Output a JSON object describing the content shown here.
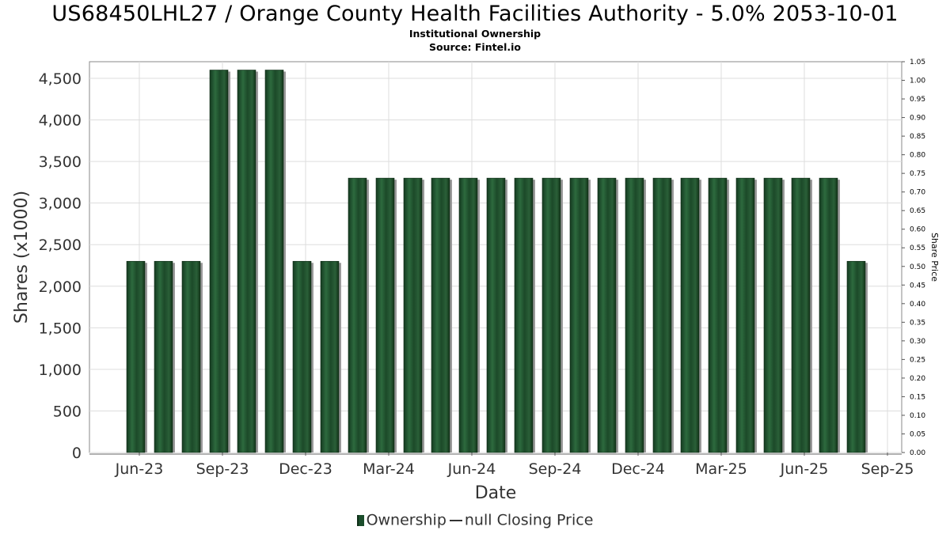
{
  "title": "US68450LHL27 / Orange County Health Facilities Authority - 5.0% 2053-10-01",
  "subtitle": "Institutional Ownership",
  "source": "Source: Fintel.io",
  "colors": {
    "bar": "#1f4a2b",
    "bar_shadow": "#9a9a9a",
    "grid": "#dddddd",
    "frame": "#888888"
  },
  "legend": {
    "ownership": "Ownership",
    "price": "null Closing Price"
  },
  "chart_data": {
    "type": "bar",
    "xlabel": "Date",
    "ylabel": "Shares (x1000)",
    "y2label": "Share Price",
    "ylim": [
      0,
      4700
    ],
    "y2lim": [
      0,
      1.05
    ],
    "yticks": [
      "0",
      "500",
      "1,000",
      "1,500",
      "2,000",
      "2,500",
      "3,000",
      "3,500",
      "4,000",
      "4,500"
    ],
    "y2ticks": [
      "0.00",
      "0.05",
      "0.10",
      "0.15",
      "0.20",
      "0.25",
      "0.30",
      "0.35",
      "0.40",
      "0.45",
      "0.50",
      "0.55",
      "0.60",
      "0.65",
      "0.70",
      "0.75",
      "0.80",
      "0.85",
      "0.90",
      "0.95",
      "1.00",
      "1.05"
    ],
    "xticks": [
      "Jun-23",
      "Sep-23",
      "Dec-23",
      "Mar-24",
      "Jun-24",
      "Sep-24",
      "Dec-24",
      "Mar-25",
      "Jun-25",
      "Sep-25"
    ],
    "grid": true,
    "legend_position": "bottom",
    "series": [
      {
        "name": "Ownership",
        "values": [
          2300,
          2300,
          2300,
          4600,
          4600,
          4600,
          2300,
          2300,
          3300,
          3300,
          3300,
          3300,
          3300,
          3300,
          3300,
          3300,
          3300,
          3300,
          3300,
          3300,
          3300,
          3300,
          3300,
          3300,
          3300,
          3300,
          2300
        ]
      }
    ]
  }
}
